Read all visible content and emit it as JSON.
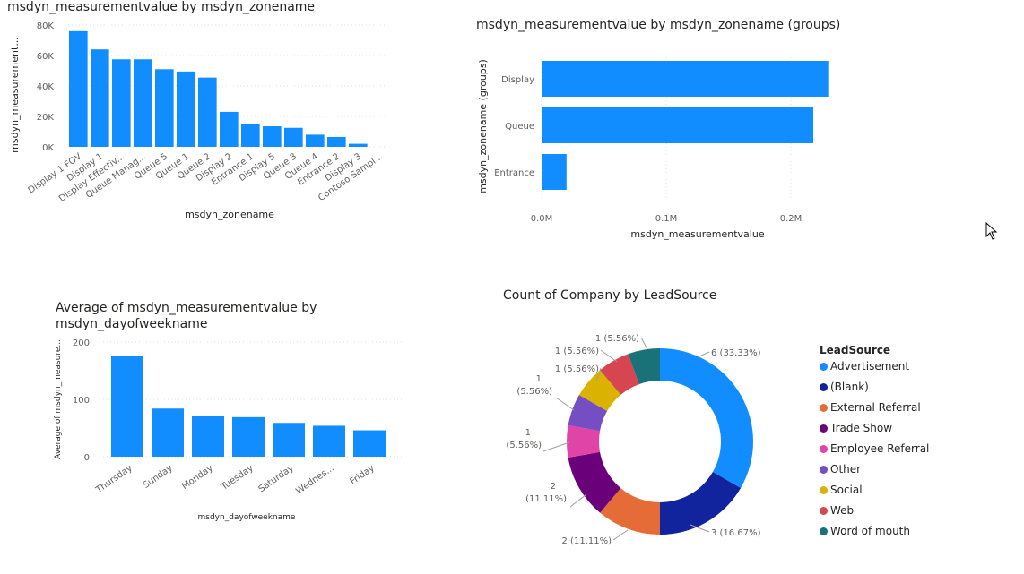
{
  "chart_data": [
    {
      "type": "bar",
      "title": "msdyn_measurementvalue by msdyn_zonename",
      "xlabel": "msdyn_zonename",
      "ylabel": "msdyn_measurement...",
      "categories": [
        "Display 1 FOV",
        "Display 1",
        "Display Effectiv...",
        "Queue Manag...",
        "Queue 5",
        "Queue 1",
        "Queue 2",
        "Display 2",
        "Entrance 1",
        "Display 5",
        "Queue 3",
        "Queue 4",
        "Entrance 2",
        "Display 3",
        "Contoso Sampl..."
      ],
      "values": [
        76000,
        64000,
        57500,
        57500,
        51000,
        49500,
        45500,
        23000,
        15000,
        13500,
        12500,
        8000,
        6500,
        2000,
        0
      ],
      "ylim": [
        0,
        80000
      ],
      "yticks": [
        "0K",
        "20K",
        "40K",
        "60K",
        "80K"
      ],
      "grid": true,
      "color": "#118dff"
    },
    {
      "type": "bar",
      "orientation": "horizontal",
      "title": "msdyn_measurementvalue by msdyn_zonename (groups)",
      "xlabel": "msdyn_measurementvalue",
      "ylabel": "msdyn_zonename (groups)",
      "categories": [
        "Display",
        "Queue",
        "Entrance"
      ],
      "values": [
        230000,
        218000,
        20000
      ],
      "xlim": [
        0,
        250000
      ],
      "xticks": [
        "0.0M",
        "0.1M",
        "0.2M"
      ],
      "grid": true,
      "color": "#118dff"
    },
    {
      "type": "bar",
      "title": "Average of msdyn_measurementvalue by msdyn_dayofweekname",
      "xlabel": "msdyn_dayofweekname",
      "ylabel": "Average of msdyn_measure...",
      "categories": [
        "Thursday",
        "Sunday",
        "Monday",
        "Tuesday",
        "Saturday",
        "Wednes...",
        "Friday"
      ],
      "values": [
        175,
        84,
        71,
        69,
        59,
        54,
        46
      ],
      "ylim": [
        0,
        200
      ],
      "yticks": [
        "0",
        "100",
        "200"
      ],
      "grid": true,
      "color": "#118dff"
    },
    {
      "type": "pie",
      "donut": true,
      "title": "Count of Company by LeadSource",
      "legend_title": "LeadSource",
      "legend_position": "right",
      "slices": [
        {
          "label": "Advertisement",
          "value": 6,
          "data_label": "6 (33.33%)",
          "color": "#118dff"
        },
        {
          "label": "(Blank)",
          "value": 3,
          "data_label": "3 (16.67%)",
          "color": "#12239e"
        },
        {
          "label": "External Referral",
          "value": 2,
          "data_label": "2 (11.11%)",
          "color": "#e66c37"
        },
        {
          "label": "Trade Show",
          "value": 2,
          "data_label_1": "2",
          "data_label_2": "(11.11%)",
          "color": "#6b007b"
        },
        {
          "label": "Employee Referral",
          "value": 1,
          "data_label_1": "1",
          "data_label_2": "(5.56%)",
          "color": "#e044a7"
        },
        {
          "label": "Other",
          "value": 1,
          "data_label_1": "1",
          "data_label_2": "(5.56%)",
          "color": "#744ec2"
        },
        {
          "label": "Social",
          "value": 1,
          "data_label": "1 (5.56%)",
          "color": "#d9b300"
        },
        {
          "label": "Web",
          "value": 1,
          "data_label": "1 (5.56%)",
          "color": "#d64550"
        },
        {
          "label": "Word of mouth",
          "value": 1,
          "data_label": "1 (5.56%)",
          "color": "#197278"
        }
      ]
    }
  ]
}
